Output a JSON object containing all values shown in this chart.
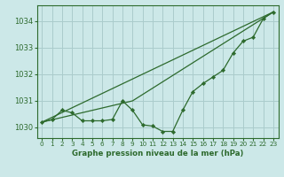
{
  "title": "Graphe pression niveau de la mer (hPa)",
  "background_color": "#cce8e8",
  "grid_color": "#aacccc",
  "line_color": "#2d6a2d",
  "marker_color": "#2d6a2d",
  "xlim": [
    -0.5,
    23.5
  ],
  "ylim": [
    1029.6,
    1034.6
  ],
  "yticks": [
    1030,
    1031,
    1032,
    1033,
    1034
  ],
  "xticks": [
    0,
    1,
    2,
    3,
    4,
    5,
    6,
    7,
    8,
    9,
    10,
    11,
    12,
    13,
    14,
    15,
    16,
    17,
    18,
    19,
    20,
    21,
    22,
    23
  ],
  "series1": {
    "x": [
      0,
      1,
      2,
      3,
      4,
      5,
      6,
      7,
      8,
      9,
      10,
      11,
      12,
      13,
      14,
      15,
      16,
      17,
      18,
      19,
      20,
      21,
      22,
      23
    ],
    "y": [
      1030.2,
      1030.3,
      1030.65,
      1030.55,
      1030.25,
      1030.25,
      1030.25,
      1030.3,
      1031.0,
      1030.65,
      1030.1,
      1030.05,
      1029.85,
      1029.85,
      1030.65,
      1031.35,
      1031.65,
      1031.9,
      1032.15,
      1032.8,
      1033.25,
      1033.4,
      1034.1,
      1034.35
    ]
  },
  "series2": {
    "x": [
      0,
      23
    ],
    "y": [
      1030.2,
      1034.35
    ]
  },
  "series3": {
    "x": [
      0,
      9,
      23
    ],
    "y": [
      1030.2,
      1031.0,
      1034.35
    ]
  }
}
